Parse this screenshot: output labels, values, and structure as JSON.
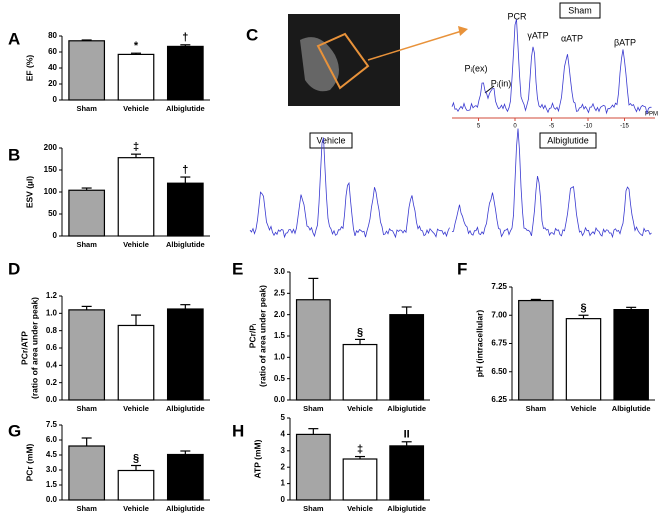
{
  "chart_data": [
    {
      "type": "bar",
      "panel": "A",
      "ylabel": "EF (%)",
      "categories": [
        "Sham",
        "Vehicle",
        "Albiglutide"
      ],
      "values": [
        74,
        57,
        67
      ],
      "errors": [
        1,
        1.5,
        2
      ],
      "colors": [
        "#a6a6a6",
        "#ffffff",
        "#000000"
      ],
      "annotations": [
        null,
        "*",
        "†"
      ],
      "ylim": [
        0,
        80
      ],
      "yticks": [
        0,
        20,
        40,
        60,
        80
      ]
    },
    {
      "type": "bar",
      "panel": "B",
      "ylabel": "ESV (µl)",
      "categories": [
        "Sham",
        "Vehicle",
        "Albiglutide"
      ],
      "values": [
        104,
        178,
        120
      ],
      "errors": [
        5,
        8,
        14
      ],
      "colors": [
        "#a6a6a6",
        "#ffffff",
        "#000000"
      ],
      "annotations": [
        null,
        "‡",
        "†"
      ],
      "ylim": [
        0,
        200
      ],
      "yticks": [
        0,
        50,
        100,
        150,
        200
      ]
    },
    {
      "type": "bar",
      "panel": "D",
      "ylabel": "PCr/ATP",
      "ylabel2": "(ratio of area under peak)",
      "categories": [
        "Sham",
        "Vehicle",
        "Albiglutide"
      ],
      "values": [
        1.04,
        0.86,
        1.05
      ],
      "errors": [
        0.04,
        0.12,
        0.05
      ],
      "colors": [
        "#a6a6a6",
        "#ffffff",
        "#000000"
      ],
      "annotations": [
        null,
        null,
        null
      ],
      "ylim": [
        0,
        1.2
      ],
      "yticks": [
        {
          "value": 0,
          "label": "0.0"
        },
        0.2,
        0.4,
        0.6,
        0.8,
        {
          "value": 1,
          "label": "1.0"
        },
        1.2
      ]
    },
    {
      "type": "bar",
      "panel": "E",
      "ylabel": "PCr/Pᵢ",
      "ylabel2": "(ratio of area under peak)",
      "categories": [
        "Sham",
        "Vehicle",
        "Albiglutide"
      ],
      "values": [
        2.35,
        1.3,
        2.0
      ],
      "errors": [
        0.5,
        0.12,
        0.18
      ],
      "colors": [
        "#a6a6a6",
        "#ffffff",
        "#000000"
      ],
      "annotations": [
        null,
        "§",
        null
      ],
      "ylim": [
        0,
        3
      ],
      "yticks": [
        {
          "value": 0,
          "label": "0.0"
        },
        0.5,
        {
          "value": 1,
          "label": "1.0"
        },
        1.5,
        {
          "value": 2,
          "label": "2.0"
        },
        2.5,
        {
          "value": 3,
          "label": "3.0"
        }
      ]
    },
    {
      "type": "bar",
      "panel": "F",
      "ylabel": "pH (intracellular)",
      "categories": [
        "Sham",
        "Vehicle",
        "Albiglutide"
      ],
      "values": [
        7.13,
        6.97,
        7.05
      ],
      "errors": [
        0.01,
        0.03,
        0.02
      ],
      "colors": [
        "#a6a6a6",
        "#ffffff",
        "#000000"
      ],
      "annotations": [
        null,
        "§",
        null
      ],
      "ylim": [
        6.25,
        7.25
      ],
      "yticks": [
        6.25,
        {
          "value": 6.5,
          "label": "6.50"
        },
        6.75,
        {
          "value": 7,
          "label": "7.00"
        },
        7.25
      ]
    },
    {
      "type": "bar",
      "panel": "G",
      "ylabel": "PCr (mM)",
      "categories": [
        "Sham",
        "Vehicle",
        "Albiglutide"
      ],
      "values": [
        5.4,
        2.95,
        4.55
      ],
      "errors": [
        0.8,
        0.5,
        0.35
      ],
      "colors": [
        "#a6a6a6",
        "#ffffff",
        "#000000"
      ],
      "annotations": [
        null,
        "§",
        null
      ],
      "ylim": [
        0,
        7.5
      ],
      "yticks": [
        {
          "value": 0,
          "label": "0.0"
        },
        1.5,
        {
          "value": 3,
          "label": "3.0"
        },
        4.5,
        {
          "value": 6,
          "label": "6.0"
        },
        7.5
      ]
    },
    {
      "type": "bar",
      "panel": "H",
      "ylabel": "ATP (mM)",
      "categories": [
        "Sham",
        "Vehicle",
        "Albiglutide"
      ],
      "values": [
        4.0,
        2.5,
        3.3
      ],
      "errors": [
        0.35,
        0.15,
        0.25
      ],
      "colors": [
        "#a6a6a6",
        "#ffffff",
        "#000000"
      ],
      "annotations": [
        null,
        "‡",
        "II"
      ],
      "ylim": [
        0,
        5
      ],
      "yticks": [
        0,
        1,
        2,
        3,
        4,
        5
      ]
    }
  ],
  "panel_c": {
    "letter": "C",
    "sham_label": "Sham",
    "vehicle_label": "Vehicle",
    "albiglutide_label": "Albiglutide",
    "peaks": [
      "PCR",
      "γATP",
      "αATP",
      "βATP",
      "Pᵢ(ex)",
      "Pᵢ(in)"
    ],
    "ppm_ticks": [
      5,
      0,
      -5,
      -10,
      -15
    ],
    "ppm_unit": "PPM"
  }
}
